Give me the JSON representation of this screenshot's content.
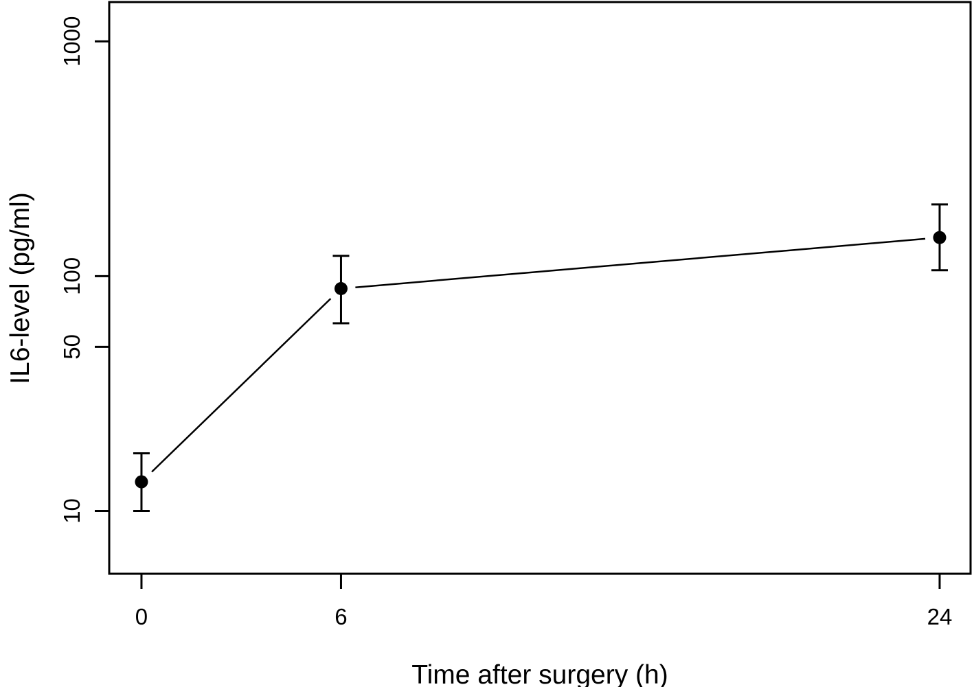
{
  "figure": {
    "background_color": "#ffffff",
    "ink_color": "#000000"
  },
  "chart_data": {
    "type": "line",
    "title": "",
    "xlabel": "Time after surgery (h)",
    "ylabel": "IL6-level (pg/ml)",
    "y_scale": "log10",
    "xlim": [
      -0.97,
      24.93
    ],
    "ylim": [
      5.4,
      1470
    ],
    "x_ticks": [
      0,
      6,
      24
    ],
    "x_tick_labels": [
      "0",
      "6",
      "24"
    ],
    "y_ticks": [
      10,
      50,
      100,
      1000
    ],
    "y_tick_labels": [
      "10",
      "50",
      "100",
      "1000"
    ],
    "grid": false,
    "legend": "none",
    "marker": "filled-circle",
    "line_style": "points-with-gapped-segments",
    "error_bars": true,
    "points": [
      {
        "x": 0,
        "y": 13.3,
        "ci_low": 10,
        "ci_high": 17.6
      },
      {
        "x": 6,
        "y": 88.5,
        "ci_low": 63,
        "ci_high": 122
      },
      {
        "x": 24,
        "y": 146,
        "ci_low": 106,
        "ci_high": 202
      }
    ]
  }
}
